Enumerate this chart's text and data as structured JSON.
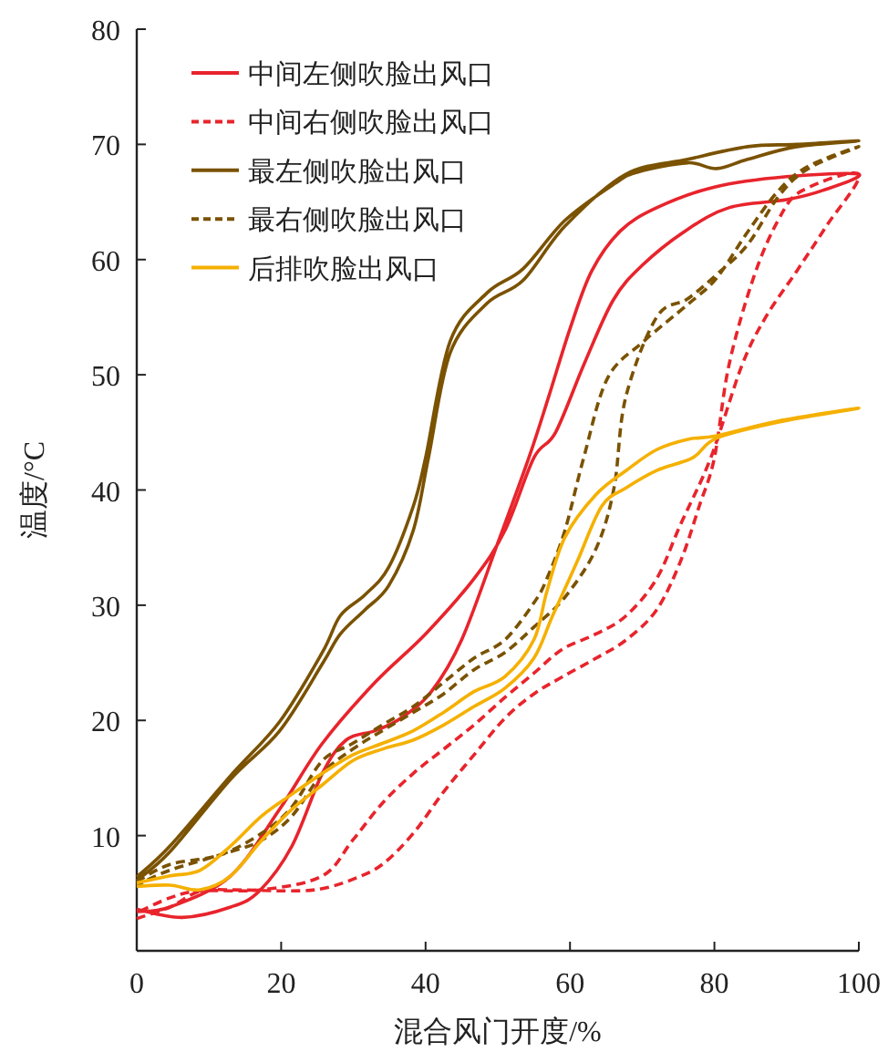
{
  "chart_data": {
    "type": "line",
    "xlabel": "混合风门开度/%",
    "ylabel": "温度/°C",
    "xlim": [
      0,
      100
    ],
    "ylim": [
      0,
      80
    ],
    "xticks": [
      0,
      20,
      40,
      60,
      80,
      100
    ],
    "yticks": [
      10,
      20,
      30,
      40,
      50,
      60,
      70,
      80
    ],
    "legend": "top left",
    "series": [
      {
        "name": "中间左侧吹脸出风口",
        "color": "#e8242c",
        "line_style": "solid",
        "x": [
          0,
          6.3,
          13,
          17,
          21.5,
          25.7,
          29,
          33,
          36.6,
          40.8,
          45,
          50,
          54.3,
          57,
          60,
          63,
          67,
          72,
          80,
          90,
          100,
          95,
          90,
          82,
          76,
          70,
          66,
          62,
          58,
          55,
          51,
          46.7,
          40,
          33,
          25.7,
          19.8,
          13,
          4.6,
          0
        ],
        "values": [
          3.6,
          2.9,
          3.8,
          5.2,
          9.1,
          15.4,
          18.3,
          19.1,
          20.2,
          22.5,
          27,
          35.4,
          42.8,
          48,
          54,
          59,
          62.5,
          64.5,
          66.3,
          67.2,
          67.4,
          66,
          65.2,
          64.5,
          62.5,
          59.5,
          56.5,
          51,
          45,
          42.8,
          36.5,
          32.3,
          27.5,
          23.3,
          18,
          12.3,
          6.5,
          3.8,
          3.4
        ]
      },
      {
        "name": "中间右侧吹脸出风口",
        "color": "#e8242c",
        "line_style": "dashed",
        "x": [
          0,
          4.6,
          8.8,
          13,
          21.5,
          25.7,
          29.9,
          34,
          38.3,
          42.5,
          46.7,
          51,
          55,
          59,
          63.6,
          67.8,
          72,
          75.3,
          77.9,
          80,
          82,
          85.4,
          88.9,
          92.2,
          100,
          95.5,
          91.4,
          87.1,
          83.8,
          79.5,
          75.3,
          72,
          67.8,
          63.6,
          59,
          55,
          51,
          46.7,
          42.5,
          38.3,
          34,
          29.9,
          25.7,
          17.3,
          8.8,
          4.6,
          0
        ],
        "values": [
          2.8,
          3.8,
          5.2,
          5.3,
          5.2,
          5.4,
          6.2,
          7.5,
          10.2,
          13.8,
          17,
          20.2,
          22.3,
          23.8,
          25.4,
          27,
          29.6,
          33.8,
          38.6,
          42.8,
          50.8,
          58.4,
          63.5,
          66,
          67.4,
          62.9,
          59,
          55,
          50.8,
          42.8,
          37,
          32.3,
          29.1,
          27.5,
          26.2,
          24.1,
          22,
          19.6,
          17.5,
          15.4,
          12.8,
          9.6,
          6.5,
          5.3,
          5.2,
          4.6,
          3.3
        ]
      },
      {
        "name": "最左侧吹脸出风口",
        "color": "#7a5200",
        "line_style": "solid",
        "x": [
          0,
          4.6,
          13,
          19.8,
          25.7,
          28.2,
          31.6,
          34.9,
          38.3,
          40,
          43.4,
          48.5,
          53.5,
          59.3,
          66.2,
          69.4,
          76.3,
          80.3,
          84.6,
          91.4,
          100,
          91.4,
          84.6,
          76.3,
          67.7,
          59.3,
          53.5,
          48.5,
          43.4,
          40.4,
          38.3,
          34.9,
          31.6,
          28.2,
          25.7,
          19.8,
          13,
          4.6,
          0
        ],
        "values": [
          6.4,
          9.1,
          15.2,
          19.9,
          25.9,
          29.1,
          30.9,
          33.3,
          38.6,
          42.8,
          52.9,
          57.1,
          59.2,
          63.4,
          66.6,
          67.6,
          68.4,
          67.9,
          68.7,
          69.8,
          70.3,
          70,
          69.8,
          68.7,
          67.4,
          62.9,
          58.2,
          56.2,
          51.9,
          42.8,
          36.5,
          31.7,
          29.6,
          27.5,
          24.9,
          19.1,
          14.9,
          8.6,
          6.1
        ]
      },
      {
        "name": "最右侧吹脸出风口",
        "color": "#7a5200",
        "line_style": "dashed",
        "x": [
          0,
          4.6,
          11.4,
          17.3,
          21.5,
          25.7,
          29.9,
          34,
          38.3,
          42.5,
          46.7,
          51,
          55,
          56.8,
          59.3,
          61.9,
          65.2,
          70.2,
          76.3,
          80.3,
          84.6,
          88.9,
          93,
          100,
          93,
          88.9,
          84.6,
          80.3,
          76.3,
          72,
          67.7,
          66.1,
          63.6,
          59.3,
          55,
          51,
          46.7,
          42.5,
          38.3,
          34,
          29.9,
          25.7,
          21.5,
          17.3,
          13,
          4.6,
          0
        ],
        "values": [
          6.0,
          7.5,
          8.3,
          10.2,
          12.5,
          16.5,
          18,
          19.6,
          21.2,
          23.3,
          25.4,
          27,
          30.2,
          32.3,
          36.5,
          42.8,
          49.7,
          52.9,
          56.1,
          58.4,
          62.4,
          66,
          68.1,
          69.8,
          67.9,
          65.5,
          61.3,
          58.7,
          56.6,
          55,
          48,
          40.2,
          34.9,
          30.7,
          28.1,
          25.9,
          24.4,
          22.3,
          20.7,
          19.1,
          17.5,
          15.4,
          11.7,
          9.6,
          8.6,
          7,
          5.7
        ]
      },
      {
        "name": "后排吹脸出风口",
        "color": "#f5b000",
        "line_style": "solid",
        "x": [
          0,
          4.6,
          8.8,
          13,
          17.3,
          21.5,
          25.7,
          29.9,
          34,
          38.3,
          42.5,
          46.7,
          51,
          55,
          56.8,
          59.3,
          63.6,
          67.8,
          72,
          76.3,
          80.3,
          88.9,
          100,
          88.9,
          80.3,
          77,
          72,
          67.8,
          64.4,
          61,
          57.6,
          55,
          51,
          46.7,
          42.5,
          38.3,
          34,
          29.9,
          25.7,
          21.5,
          17.3,
          13,
          8.8,
          4.6,
          0
        ],
        "values": [
          5.9,
          6.5,
          7,
          9.1,
          11.7,
          13.6,
          15.4,
          17,
          18,
          19.1,
          20.7,
          22.5,
          23.8,
          27,
          31.2,
          35.9,
          39.6,
          41.7,
          43.5,
          44.4,
          44.7,
          46,
          47.1,
          45.9,
          44.5,
          42.8,
          41.7,
          40.2,
          38.6,
          33.8,
          29.1,
          25.4,
          22.8,
          21.2,
          19.6,
          18.3,
          17.5,
          16.5,
          14.4,
          12.3,
          9.6,
          6.5,
          5.3,
          5.7,
          5.6
        ]
      }
    ]
  }
}
